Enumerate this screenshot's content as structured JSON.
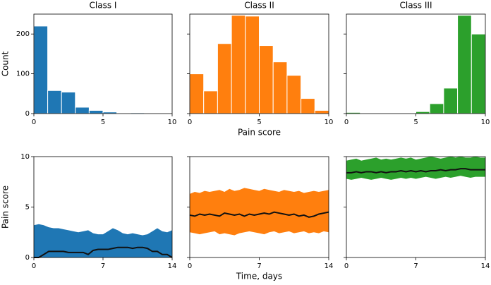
{
  "chart_data": [
    {
      "type": "histogram",
      "title": "Class I",
      "ylabel": "Count",
      "color": "#1f77b4",
      "bins": [
        0,
        1,
        2,
        3,
        4,
        5,
        6,
        7,
        8,
        9,
        10
      ],
      "counts": [
        220,
        58,
        54,
        16,
        8,
        4,
        1,
        2,
        1,
        0
      ],
      "xlim": [
        0,
        10
      ],
      "xticks": [
        0,
        5,
        10
      ],
      "ylim": [
        0,
        250
      ],
      "yticks": [
        0,
        100,
        200
      ]
    },
    {
      "type": "histogram",
      "title": "Class II",
      "xlabel": "Pain score",
      "color": "#ff7f0e",
      "bins": [
        0,
        1,
        2,
        3,
        4,
        5,
        6,
        7,
        8,
        9,
        10
      ],
      "counts": [
        100,
        57,
        176,
        247,
        245,
        171,
        130,
        96,
        38,
        8
      ],
      "xlim": [
        0,
        10
      ],
      "xticks": [
        0,
        5,
        10
      ],
      "ylim": [
        0,
        250
      ]
    },
    {
      "type": "histogram",
      "title": "Class III",
      "color": "#2ca02c",
      "bins": [
        0,
        1,
        2,
        3,
        4,
        5,
        6,
        7,
        8,
        9,
        10
      ],
      "counts": [
        3,
        0,
        0,
        0,
        0,
        5,
        25,
        64,
        247,
        200
      ],
      "xlim": [
        0,
        10
      ],
      "xticks": [
        0,
        5,
        10
      ],
      "ylim": [
        0,
        250
      ]
    },
    {
      "type": "line",
      "ylabel": "Pain score",
      "color": "#1f77b4",
      "x": [
        0,
        0.5,
        1,
        1.5,
        2,
        2.5,
        3,
        3.5,
        4,
        4.5,
        5,
        5.5,
        6,
        6.5,
        7,
        7.5,
        8,
        8.5,
        9,
        9.5,
        10,
        10.5,
        11,
        11.5,
        12,
        12.5,
        13,
        13.5,
        14
      ],
      "values": [
        0,
        0,
        0.3,
        0.6,
        0.6,
        0.6,
        0.6,
        0.5,
        0.5,
        0.5,
        0.5,
        0.3,
        0.7,
        0.8,
        0.8,
        0.8,
        0.9,
        1.0,
        1.0,
        1.0,
        0.9,
        1.0,
        1.0,
        0.9,
        0.6,
        0.6,
        0.3,
        0.3,
        0
      ],
      "upper": [
        3.2,
        3.3,
        3.2,
        3.0,
        2.9,
        2.9,
        2.8,
        2.7,
        2.6,
        2.5,
        2.6,
        2.7,
        2.4,
        2.3,
        2.3,
        2.6,
        2.9,
        2.7,
        2.4,
        2.3,
        2.4,
        2.3,
        2.2,
        2.3,
        2.6,
        2.9,
        2.6,
        2.5,
        2.7
      ],
      "lower": [
        0,
        0,
        0,
        0,
        0,
        0,
        0,
        0,
        0,
        0,
        0,
        0,
        0,
        0,
        0,
        0,
        0,
        0,
        0,
        0,
        0,
        0,
        0,
        0,
        0,
        0,
        0,
        0,
        0
      ],
      "xlim": [
        0,
        14
      ],
      "xticks": [
        0,
        7,
        14
      ],
      "ylim": [
        0,
        10
      ],
      "yticks": [
        0,
        5,
        10
      ]
    },
    {
      "type": "line",
      "xlabel": "Time, days",
      "color": "#ff7f0e",
      "x": [
        0,
        0.5,
        1,
        1.5,
        2,
        2.5,
        3,
        3.5,
        4,
        4.5,
        5,
        5.5,
        6,
        6.5,
        7,
        7.5,
        8,
        8.5,
        9,
        9.5,
        10,
        10.5,
        11,
        11.5,
        12,
        12.5,
        13,
        13.5,
        14
      ],
      "values": [
        4.2,
        4.1,
        4.3,
        4.2,
        4.3,
        4.2,
        4.1,
        4.4,
        4.3,
        4.2,
        4.3,
        4.1,
        4.3,
        4.2,
        4.3,
        4.4,
        4.3,
        4.5,
        4.4,
        4.3,
        4.2,
        4.3,
        4.1,
        4.2,
        4.0,
        4.1,
        4.3,
        4.4,
        4.5
      ],
      "upper": [
        6.3,
        6.5,
        6.4,
        6.6,
        6.5,
        6.6,
        6.7,
        6.5,
        6.8,
        6.6,
        6.7,
        6.9,
        6.8,
        6.7,
        6.6,
        6.8,
        6.7,
        6.6,
        6.5,
        6.7,
        6.6,
        6.5,
        6.6,
        6.4,
        6.5,
        6.6,
        6.5,
        6.6,
        6.7
      ],
      "lower": [
        2.5,
        2.4,
        2.3,
        2.4,
        2.5,
        2.6,
        2.3,
        2.4,
        2.3,
        2.2,
        2.4,
        2.5,
        2.6,
        2.5,
        2.4,
        2.3,
        2.5,
        2.6,
        2.4,
        2.5,
        2.6,
        2.4,
        2.5,
        2.6,
        2.4,
        2.5,
        2.4,
        2.6,
        2.5
      ],
      "xlim": [
        0,
        14
      ],
      "xticks": [
        0,
        7,
        14
      ],
      "ylim": [
        0,
        10
      ]
    },
    {
      "type": "line",
      "color": "#2ca02c",
      "x": [
        0,
        0.5,
        1,
        1.5,
        2,
        2.5,
        3,
        3.5,
        4,
        4.5,
        5,
        5.5,
        6,
        6.5,
        7,
        7.5,
        8,
        8.5,
        9,
        9.5,
        10,
        10.5,
        11,
        11.5,
        12,
        12.5,
        13,
        13.5,
        14
      ],
      "values": [
        8.4,
        8.4,
        8.5,
        8.4,
        8.5,
        8.5,
        8.4,
        8.5,
        8.4,
        8.5,
        8.5,
        8.6,
        8.5,
        8.6,
        8.5,
        8.6,
        8.5,
        8.6,
        8.6,
        8.7,
        8.6,
        8.7,
        8.7,
        8.8,
        8.8,
        8.7,
        8.7,
        8.7,
        8.7
      ],
      "upper": [
        9.6,
        9.7,
        9.8,
        9.6,
        9.7,
        9.8,
        9.9,
        9.7,
        9.8,
        9.7,
        9.8,
        9.9,
        9.8,
        9.9,
        9.7,
        9.8,
        9.9,
        10.0,
        9.9,
        9.8,
        9.9,
        10.0,
        9.9,
        10.0,
        9.9,
        9.9,
        10.0,
        9.9,
        9.9
      ],
      "lower": [
        7.8,
        7.7,
        7.8,
        7.9,
        7.8,
        7.7,
        7.8,
        7.9,
        7.8,
        7.7,
        7.8,
        7.9,
        7.8,
        7.9,
        7.8,
        7.9,
        8.0,
        7.9,
        7.8,
        7.9,
        8.0,
        7.9,
        8.0,
        8.1,
        8.0,
        7.9,
        8.0,
        8.0,
        8.0
      ],
      "xlim": [
        0,
        14
      ],
      "xticks": [
        0,
        7,
        14
      ],
      "ylim": [
        0,
        10
      ]
    }
  ]
}
